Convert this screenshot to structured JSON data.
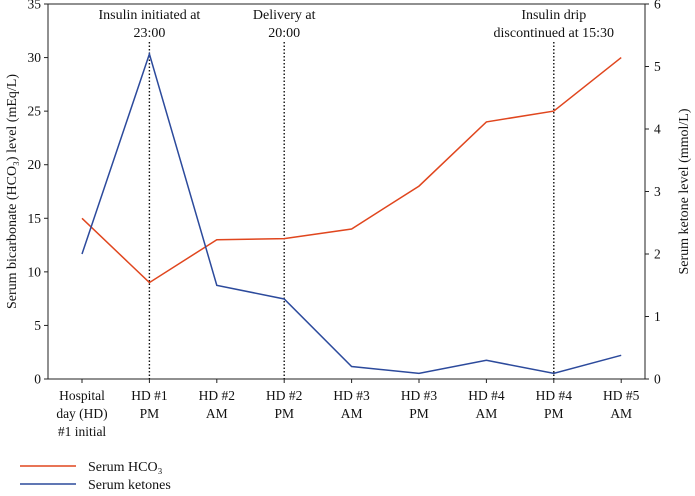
{
  "chart_data": {
    "type": "line",
    "categories": [
      [
        "Hospital",
        "day (HD)",
        "#1 initial"
      ],
      [
        "HD #1",
        "PM"
      ],
      [
        "HD #2",
        "AM"
      ],
      [
        "HD #2",
        "PM"
      ],
      [
        "HD #3",
        "AM"
      ],
      [
        "HD #3",
        "PM"
      ],
      [
        "HD #4",
        "AM"
      ],
      [
        "HD #4",
        "PM"
      ],
      [
        "HD #5",
        "AM"
      ]
    ],
    "series": [
      {
        "name": "Serum HCO₃",
        "axis": "left",
        "color": "#e0461e",
        "values": [
          15,
          9,
          13,
          13.1,
          14,
          18,
          24,
          25,
          30
        ]
      },
      {
        "name": "Serum ketones",
        "axis": "right",
        "color": "#2c4a9c",
        "values": [
          2.0,
          5.2,
          1.5,
          1.28,
          0.2,
          0.09,
          0.3,
          0.09,
          0.38
        ]
      }
    ],
    "ylabel_left": "Serum bicarbonate (HCO₃) level (mEq/L)",
    "ylabel_right": "Serum ketone level (mmol/L)",
    "ylim_left": [
      0,
      35
    ],
    "yticks_left": [
      0,
      5,
      10,
      15,
      20,
      25,
      30,
      35
    ],
    "ylim_right": [
      0,
      6
    ],
    "yticks_right": [
      0,
      1,
      2,
      3,
      4,
      5,
      6
    ],
    "grid": false,
    "legend_position": "bottom-left",
    "annotations": [
      {
        "category_index": 1,
        "lines": [
          "Insulin initiated at",
          "23:00"
        ]
      },
      {
        "category_index": 3,
        "lines": [
          "Delivery at",
          "20:00"
        ]
      },
      {
        "category_index": 7,
        "lines": [
          "Insulin drip",
          "discontinued at 15:30"
        ]
      }
    ]
  }
}
